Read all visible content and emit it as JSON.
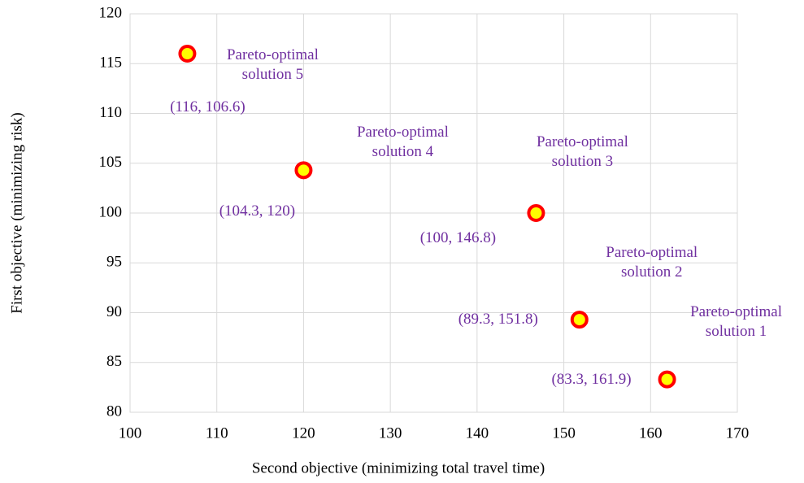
{
  "chart_data": {
    "type": "scatter",
    "xlabel": "Second objective (minimizing total travel time)",
    "ylabel": "First objective (minimizing risk)",
    "x": [
      161.9,
      151.8,
      146.8,
      120,
      106.6
    ],
    "values": [
      83.3,
      89.3,
      100,
      104.3,
      116
    ],
    "value_labels": [
      "(83.3, 161.9)",
      "(89.3, 151.8)",
      "(100, 146.8)",
      "(104.3, 120)",
      "(116, 106.6)"
    ],
    "point_labels": [
      "Pareto-optimal solution 1",
      "Pareto-optimal solution 2",
      "Pareto-optimal solution 3",
      "Pareto-optimal solution 4",
      "Pareto-optimal solution 5"
    ],
    "color": "#ffff00",
    "edgecolor": "#ff0000",
    "label_color": "#7030a0",
    "xlim": [
      100,
      170
    ],
    "xticks": [
      100,
      110,
      120,
      130,
      140,
      150,
      160,
      170
    ],
    "ylim": [
      80,
      120
    ],
    "yticks": [
      80,
      85,
      90,
      95,
      100,
      105,
      110,
      115,
      120
    ],
    "grid": true
  }
}
